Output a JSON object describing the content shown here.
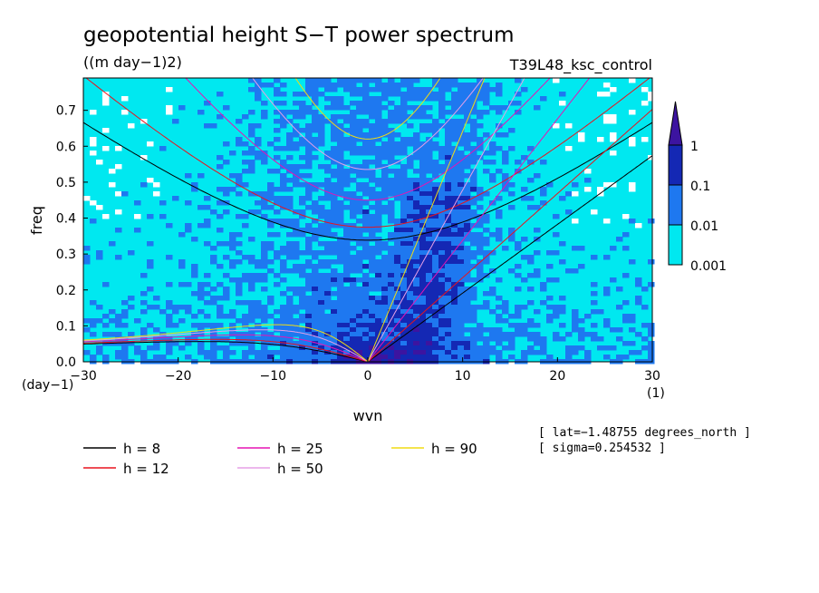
{
  "chart_data": {
    "type": "heatmap",
    "title": "geopotential height S−T power spectrum",
    "units": "((m day−1)2)",
    "experiment": "T39L48_ksc_control",
    "xlabel": "wvn",
    "ylabel": "freq",
    "x_unit_label": "(1)",
    "y_unit_label": "(day−1)",
    "xlim": [
      -30,
      30
    ],
    "ylim": [
      0,
      0.79
    ],
    "xticks": [
      -30,
      -20,
      -10,
      0,
      10,
      20,
      30
    ],
    "yticks": [
      0.0,
      0.1,
      0.2,
      0.3,
      0.4,
      0.5,
      0.6,
      0.7
    ],
    "colorbar": {
      "levels": [
        0.001,
        0.01,
        0.1,
        1
      ],
      "labels": [
        "0.001",
        "0.01",
        "0.1",
        "1"
      ],
      "colors": [
        "#00e8f0",
        "#1e78f0",
        "#1428b4",
        "#3c14a0"
      ]
    },
    "series": [
      {
        "name": "h = 8",
        "h": 8,
        "color": "#000000"
      },
      {
        "name": "h = 12",
        "h": 12,
        "color": "#e8141e"
      },
      {
        "name": "h = 25",
        "h": 25,
        "color": "#e614b4"
      },
      {
        "name": "h = 50",
        "h": 50,
        "color": "#e6a0e6"
      },
      {
        "name": "h = 90",
        "h": 90,
        "color": "#f0dc14"
      }
    ],
    "annotations": [
      "[ lat=−1.48755 degrees_north ]",
      "[ sigma=0.254532 ]"
    ]
  }
}
